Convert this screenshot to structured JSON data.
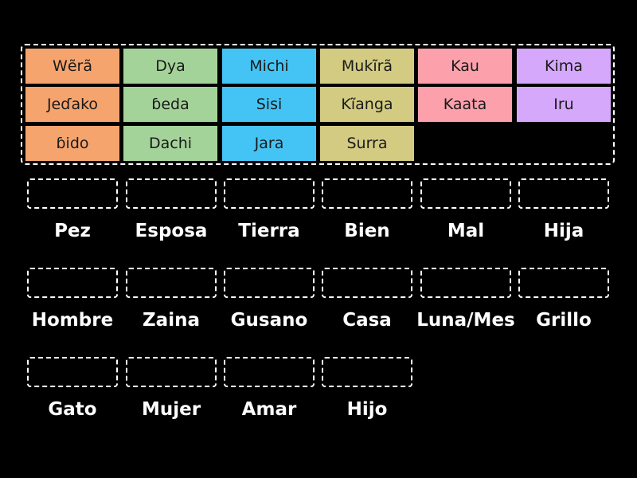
{
  "colors": {
    "background": "#000000",
    "orange": "#f5a46e",
    "green": "#a4d39a",
    "blue": "#44c4f4",
    "olive": "#d2cb81",
    "pink": "#fca0ac",
    "purple": "#d5a8fb",
    "border": "#ffffff"
  },
  "tiles": [
    {
      "text": "Wẽrã",
      "color": "orange"
    },
    {
      "text": "Dya",
      "color": "green"
    },
    {
      "text": "Michi",
      "color": "blue"
    },
    {
      "text": "Mukĩrã",
      "color": "olive"
    },
    {
      "text": "Kau",
      "color": "pink"
    },
    {
      "text": "Kima",
      "color": "purple"
    },
    {
      "text": "Jeɗako",
      "color": "orange"
    },
    {
      "text": "ɓeda",
      "color": "green"
    },
    {
      "text": "Sisi",
      "color": "blue"
    },
    {
      "text": "Kĩanga",
      "color": "olive"
    },
    {
      "text": "Kaata",
      "color": "pink"
    },
    {
      "text": "Iru",
      "color": "purple"
    },
    {
      "text": "ɓido",
      "color": "orange"
    },
    {
      "text": "Dachi",
      "color": "green"
    },
    {
      "text": "Jara",
      "color": "blue"
    },
    {
      "text": "Surra",
      "color": "olive"
    }
  ],
  "targets": [
    {
      "label": "Pez"
    },
    {
      "label": "Esposa"
    },
    {
      "label": "Tierra"
    },
    {
      "label": "Bien"
    },
    {
      "label": "Mal"
    },
    {
      "label": "Hija"
    },
    {
      "label": "Hombre"
    },
    {
      "label": "Zaina"
    },
    {
      "label": "Gusano"
    },
    {
      "label": "Casa"
    },
    {
      "label": "Luna/Mes"
    },
    {
      "label": "Grillo"
    },
    {
      "label": "Gato"
    },
    {
      "label": "Mujer"
    },
    {
      "label": "Amar"
    },
    {
      "label": "Hijo"
    }
  ]
}
